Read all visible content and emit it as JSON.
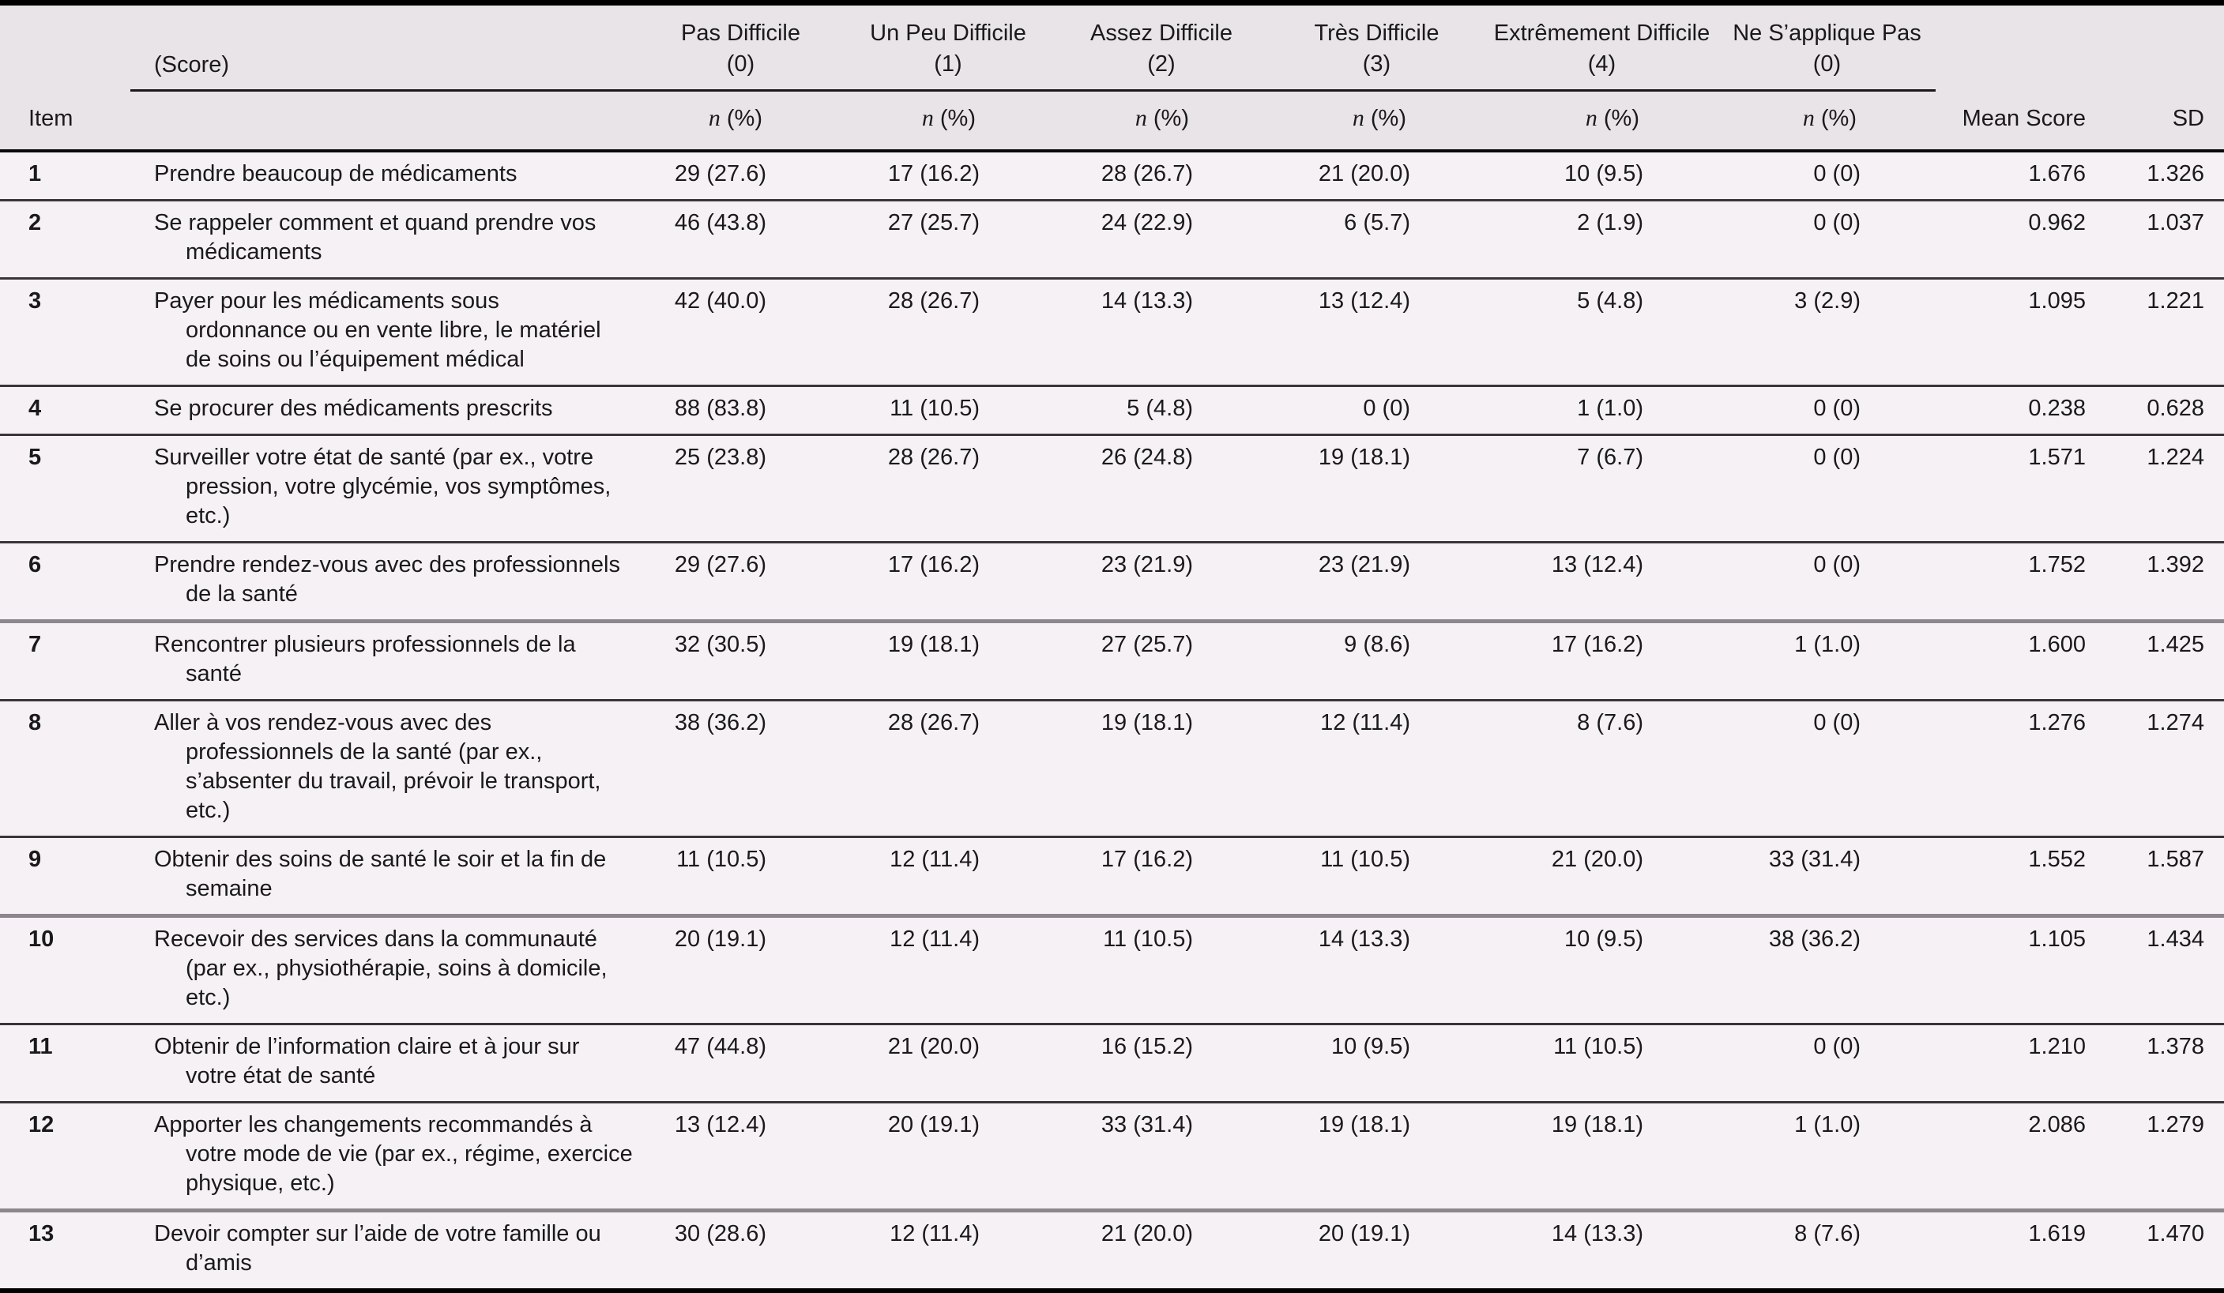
{
  "table": {
    "item_header": "Item",
    "score_group_label": "(Score)",
    "n_label": "n",
    "pct_label": "(%)",
    "mean_header": "Mean Score",
    "sd_header": "SD",
    "columns": [
      {
        "label": "Pas Difficile",
        "score": "(0)"
      },
      {
        "label": "Un Peu Difficile",
        "score": "(1)"
      },
      {
        "label": "Assez Difficile",
        "score": "(2)"
      },
      {
        "label": "Très Difficile",
        "score": "(3)"
      },
      {
        "label": "Extrêmement Difficile",
        "score": "(4)"
      },
      {
        "label": "Ne S’applique Pas",
        "score": "(0)"
      }
    ],
    "rows": [
      {
        "item": "1",
        "description": "Prendre beaucoup de médicaments",
        "values": [
          "29 (27.6)",
          "17 (16.2)",
          "28 (26.7)",
          "21 (20.0)",
          "10 (9.5)",
          "0 (0)"
        ],
        "mean": "1.676",
        "sd": "1.326"
      },
      {
        "item": "2",
        "description": "Se rappeler comment et quand prendre vos\nmédicaments",
        "values": [
          "46 (43.8)",
          "27 (25.7)",
          "24 (22.9)",
          "6 (5.7)",
          "2 (1.9)",
          "0 (0)"
        ],
        "mean": "0.962",
        "sd": "1.037"
      },
      {
        "item": "3",
        "description": "Payer pour les médicaments sous\nordonnance ou en vente libre, le matériel\nde soins ou l’équipement médical",
        "values": [
          "42 (40.0)",
          "28 (26.7)",
          "14 (13.3)",
          "13 (12.4)",
          "5 (4.8)",
          "3 (2.9)"
        ],
        "mean": "1.095",
        "sd": "1.221"
      },
      {
        "item": "4",
        "description": "Se procurer des médicaments prescrits",
        "values": [
          "88 (83.8)",
          "11 (10.5)",
          "5 (4.8)",
          "0 (0)",
          "1 (1.0)",
          "0 (0)"
        ],
        "mean": "0.238",
        "sd": "0.628"
      },
      {
        "item": "5",
        "description": "Surveiller votre état de santé (par ex., votre\npression, votre glycémie, vos symptômes,\netc.)",
        "values": [
          "25 (23.8)",
          "28 (26.7)",
          "26 (24.8)",
          "19 (18.1)",
          "7 (6.7)",
          "0 (0)"
        ],
        "mean": "1.571",
        "sd": "1.224"
      },
      {
        "item": "6",
        "description": "Prendre rendez-vous avec des professionnels\nde la santé",
        "values": [
          "29 (27.6)",
          "17 (16.2)",
          "23 (21.9)",
          "23 (21.9)",
          "13 (12.4)",
          "0 (0)"
        ],
        "mean": "1.752",
        "sd": "1.392"
      },
      {
        "item": "7",
        "description": "Rencontrer plusieurs professionnels de la\nsanté",
        "values": [
          "32 (30.5)",
          "19 (18.1)",
          "27 (25.7)",
          "9 (8.6)",
          "17 (16.2)",
          "1 (1.0)"
        ],
        "mean": "1.600",
        "sd": "1.425"
      },
      {
        "item": "8",
        "description": "Aller à vos rendez-vous avec des\nprofessionnels de la santé (par ex.,\ns’absenter du travail, prévoir le transport,\netc.)",
        "values": [
          "38 (36.2)",
          "28 (26.7)",
          "19 (18.1)",
          "12 (11.4)",
          "8 (7.6)",
          "0 (0)"
        ],
        "mean": "1.276",
        "sd": "1.274"
      },
      {
        "item": "9",
        "description": "Obtenir des soins de santé le soir et la fin de\nsemaine",
        "values": [
          "11 (10.5)",
          "12 (11.4)",
          "17 (16.2)",
          "11 (10.5)",
          "21 (20.0)",
          "33 (31.4)"
        ],
        "mean": "1.552",
        "sd": "1.587"
      },
      {
        "item": "10",
        "description": "Recevoir des services dans la communauté\n(par ex., physiothérapie, soins à domicile,\netc.)",
        "values": [
          "20 (19.1)",
          "12 (11.4)",
          "11 (10.5)",
          "14 (13.3)",
          "10 (9.5)",
          "38 (36.2)"
        ],
        "mean": "1.105",
        "sd": "1.434"
      },
      {
        "item": "11",
        "description": "Obtenir de l’information claire et à jour sur\nvotre état de santé",
        "values": [
          "47 (44.8)",
          "21 (20.0)",
          "16 (15.2)",
          "10 (9.5)",
          "11 (10.5)",
          "0 (0)"
        ],
        "mean": "1.210",
        "sd": "1.378"
      },
      {
        "item": "12",
        "description": "Apporter les changements recommandés à\nvotre mode de vie (par ex., régime, exercice\nphysique, etc.)",
        "values": [
          "13 (12.4)",
          "20 (19.1)",
          "33 (31.4)",
          "19 (18.1)",
          "19 (18.1)",
          "1 (1.0)"
        ],
        "mean": "2.086",
        "sd": "1.279"
      },
      {
        "item": "13",
        "description": "Devoir compter sur l’aide de votre famille ou\nd’amis",
        "values": [
          "30 (28.6)",
          "12 (11.4)",
          "21 (20.0)",
          "20 (19.1)",
          "14 (13.3)",
          "8 (7.6)"
        ],
        "mean": "1.619",
        "sd": "1.470"
      }
    ]
  }
}
